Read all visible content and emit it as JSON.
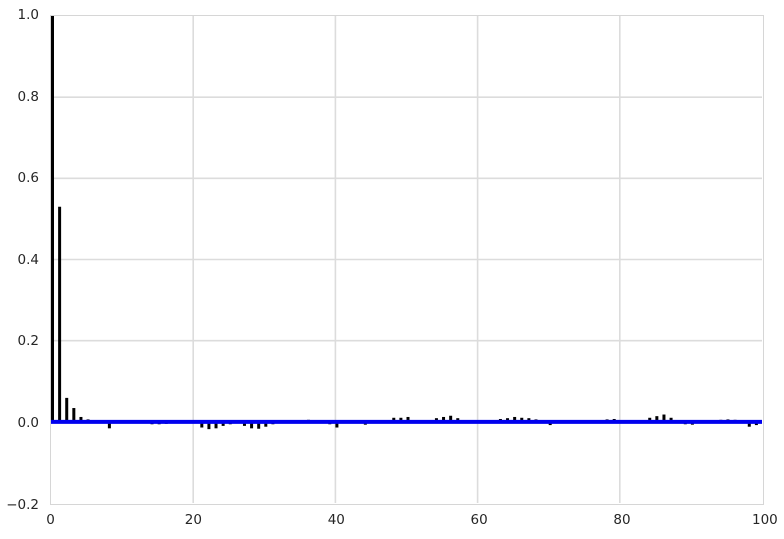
{
  "figure": {
    "background_color": "#ffffff",
    "grid_color": "#dcdcdc",
    "border_color": "#d6d6d6",
    "tick_label_color": "#262626"
  },
  "chart_data": {
    "type": "bar",
    "subtype": "stem-acf",
    "title": "",
    "xlabel": "",
    "ylabel": "",
    "xlim": [
      0,
      100
    ],
    "ylim": [
      -0.2,
      1.0
    ],
    "grid": true,
    "legend": false,
    "bar_color": "#000000",
    "zero_line_color": "#0000ee",
    "zero_line_y": 0.0,
    "xticks": [
      0,
      20,
      40,
      60,
      80,
      100
    ],
    "xtick_labels": [
      "0",
      "20",
      "40",
      "60",
      "80",
      "100"
    ],
    "yticks": [
      1.0,
      0.8,
      0.6,
      0.4,
      0.2,
      0.0,
      -0.2
    ],
    "ytick_labels": [
      "1.0",
      "0.8",
      "0.6",
      "0.4",
      "0.2",
      "0.0",
      "−0.2"
    ],
    "x_start": 0,
    "x_step": 1,
    "values": [
      1.0,
      0.53,
      0.059,
      0.034,
      0.012,
      0.006,
      0.001,
      -0.004,
      -0.016,
      -0.003,
      0.004,
      0.001,
      -0.001,
      -0.004,
      -0.006,
      -0.006,
      -0.005,
      0.001,
      0.004,
      0.0,
      -0.003,
      -0.014,
      -0.018,
      -0.016,
      -0.01,
      -0.006,
      -0.001,
      -0.01,
      -0.016,
      -0.017,
      -0.012,
      -0.006,
      0.0,
      0.001,
      0.0,
      0.003,
      0.005,
      0.001,
      -0.001,
      -0.006,
      -0.014,
      -0.001,
      0.004,
      -0.002,
      -0.007,
      -0.001,
      0.0,
      0.002,
      0.01,
      0.01,
      0.012,
      0.002,
      0.0,
      0.004,
      0.009,
      0.012,
      0.015,
      0.009,
      0.004,
      0.0,
      0.001,
      0.0,
      0.003,
      0.007,
      0.009,
      0.012,
      0.01,
      0.009,
      0.006,
      0.0,
      -0.008,
      -0.004,
      0.0,
      0.003,
      0.002,
      -0.004,
      -0.001,
      0.001,
      0.006,
      0.007,
      0.0,
      0.0,
      0.002,
      0.004,
      0.01,
      0.014,
      0.018,
      0.01,
      0.0,
      -0.006,
      -0.007,
      -0.004,
      0.0,
      0.003,
      0.005,
      0.006,
      0.005,
      0.0,
      -0.012,
      -0.008,
      -0.004
    ]
  }
}
